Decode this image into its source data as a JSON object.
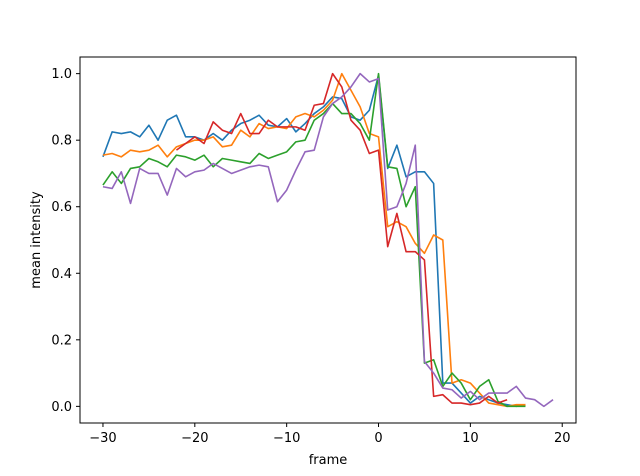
{
  "chart_data": {
    "type": "line",
    "title": "",
    "xlabel": "frame",
    "ylabel": "mean intensity",
    "xlim": [
      -32.5,
      21.5
    ],
    "ylim": [
      -0.05,
      1.05
    ],
    "xticks": [
      -30,
      -20,
      -10,
      0,
      10,
      20
    ],
    "yticks": [
      0.0,
      0.2,
      0.4,
      0.6,
      0.8,
      1.0
    ],
    "xtick_labels": [
      "−30",
      "−20",
      "−10",
      "0",
      "10",
      "20"
    ],
    "ytick_labels": [
      "0.0",
      "0.2",
      "0.4",
      "0.6",
      "0.8",
      "1.0"
    ],
    "grid": false,
    "series": [
      {
        "color": "#1f77b4",
        "x": [
          -30,
          -29,
          -28,
          -27,
          -26,
          -25,
          -24,
          -23,
          -22,
          -21,
          -20,
          -19,
          -18,
          -17,
          -16,
          -15,
          -14,
          -13,
          -12,
          -11,
          -10,
          -9,
          -8,
          -7,
          -6,
          -5,
          -4,
          -3,
          -2,
          -1,
          0,
          1,
          2,
          3,
          4,
          5,
          6,
          7,
          8,
          9,
          10,
          11,
          12,
          13,
          14,
          15,
          16
        ],
        "y": [
          0.75,
          0.825,
          0.82,
          0.825,
          0.81,
          0.845,
          0.8,
          0.86,
          0.875,
          0.81,
          0.81,
          0.8,
          0.82,
          0.8,
          0.83,
          0.85,
          0.86,
          0.875,
          0.845,
          0.84,
          0.865,
          0.825,
          0.85,
          0.88,
          0.9,
          0.93,
          0.925,
          0.87,
          0.86,
          0.89,
          0.995,
          0.715,
          0.785,
          0.69,
          0.705,
          0.705,
          0.67,
          0.07,
          0.07,
          0.04,
          0.01,
          0.03,
          0.02,
          0.01,
          0.005,
          0.0,
          0.005
        ]
      },
      {
        "color": "#ff7f0e",
        "x": [
          -30,
          -29,
          -28,
          -27,
          -26,
          -25,
          -24,
          -23,
          -22,
          -21,
          -20,
          -19,
          -18,
          -17,
          -16,
          -15,
          -14,
          -13,
          -12,
          -11,
          -10,
          -9,
          -8,
          -7,
          -6,
          -5,
          -4,
          -3,
          -2,
          -1,
          0,
          1,
          2,
          3,
          4,
          5,
          6,
          7,
          8,
          9,
          10,
          11,
          12,
          13,
          14,
          15,
          16
        ],
        "y": [
          0.755,
          0.76,
          0.75,
          0.77,
          0.765,
          0.77,
          0.785,
          0.75,
          0.78,
          0.79,
          0.8,
          0.8,
          0.81,
          0.78,
          0.785,
          0.83,
          0.81,
          0.85,
          0.835,
          0.84,
          0.835,
          0.87,
          0.88,
          0.87,
          0.89,
          0.92,
          1.0,
          0.95,
          0.9,
          0.82,
          0.81,
          0.54,
          0.555,
          0.54,
          0.49,
          0.46,
          0.515,
          0.5,
          0.07,
          0.08,
          0.07,
          0.04,
          0.01,
          0.005,
          0.0,
          0.005,
          0.005
        ]
      },
      {
        "color": "#2ca02c",
        "x": [
          -30,
          -29,
          -28,
          -27,
          -26,
          -25,
          -24,
          -23,
          -22,
          -21,
          -20,
          -19,
          -18,
          -17,
          -16,
          -15,
          -14,
          -13,
          -12,
          -11,
          -10,
          -9,
          -8,
          -7,
          -6,
          -5,
          -4,
          -3,
          -2,
          -1,
          0,
          1,
          2,
          3,
          4,
          5,
          6,
          7,
          8,
          9,
          10,
          11,
          12,
          13,
          14,
          15,
          16
        ],
        "y": [
          0.665,
          0.705,
          0.67,
          0.715,
          0.72,
          0.745,
          0.735,
          0.72,
          0.755,
          0.75,
          0.74,
          0.755,
          0.72,
          0.745,
          0.74,
          0.735,
          0.73,
          0.76,
          0.745,
          0.755,
          0.765,
          0.795,
          0.8,
          0.86,
          0.88,
          0.91,
          0.88,
          0.88,
          0.85,
          0.8,
          1.0,
          0.72,
          0.715,
          0.6,
          0.66,
          0.13,
          0.14,
          0.06,
          0.1,
          0.07,
          0.02,
          0.06,
          0.08,
          0.015,
          0.0,
          0.0,
          0.0
        ]
      },
      {
        "color": "#d62728",
        "x": [
          -22,
          -21,
          -20,
          -19,
          -18,
          -17,
          -16,
          -15,
          -14,
          -13,
          -12,
          -11,
          -10,
          -9,
          -8,
          -7,
          -6,
          -5,
          -4,
          -3,
          -2,
          -1,
          0,
          1,
          2,
          3,
          4,
          5,
          6,
          7,
          8,
          9,
          10,
          11,
          12,
          13,
          14
        ],
        "y": [
          0.77,
          0.79,
          0.81,
          0.79,
          0.855,
          0.83,
          0.82,
          0.88,
          0.82,
          0.82,
          0.86,
          0.84,
          0.84,
          0.84,
          0.83,
          0.905,
          0.91,
          1.0,
          0.96,
          0.86,
          0.83,
          0.76,
          0.77,
          0.48,
          0.58,
          0.465,
          0.465,
          0.44,
          0.03,
          0.035,
          0.01,
          0.01,
          0.005,
          0.01,
          0.03,
          0.01,
          0.02
        ]
      },
      {
        "color": "#9467bd",
        "x": [
          -30,
          -29,
          -28,
          -27,
          -26,
          -25,
          -24,
          -23,
          -22,
          -21,
          -20,
          -19,
          -18,
          -17,
          -16,
          -15,
          -14,
          -13,
          -12,
          -11,
          -10,
          -9,
          -8,
          -7,
          -6,
          -5,
          -4,
          -3,
          -2,
          -1,
          0,
          1,
          2,
          3,
          4,
          5,
          6,
          7,
          8,
          9,
          10,
          11,
          12,
          13,
          14,
          15,
          16,
          17,
          18,
          19
        ],
        "y": [
          0.66,
          0.655,
          0.705,
          0.61,
          0.715,
          0.7,
          0.7,
          0.635,
          0.715,
          0.69,
          0.705,
          0.71,
          0.73,
          0.715,
          0.7,
          0.71,
          0.72,
          0.725,
          0.72,
          0.615,
          0.65,
          0.71,
          0.765,
          0.77,
          0.87,
          0.91,
          0.93,
          0.96,
          1.0,
          0.975,
          0.985,
          0.59,
          0.6,
          0.67,
          0.785,
          0.135,
          0.1,
          0.055,
          0.05,
          0.025,
          0.045,
          0.02,
          0.04,
          0.04,
          0.04,
          0.06,
          0.025,
          0.02,
          0.0,
          0.02
        ]
      }
    ]
  }
}
